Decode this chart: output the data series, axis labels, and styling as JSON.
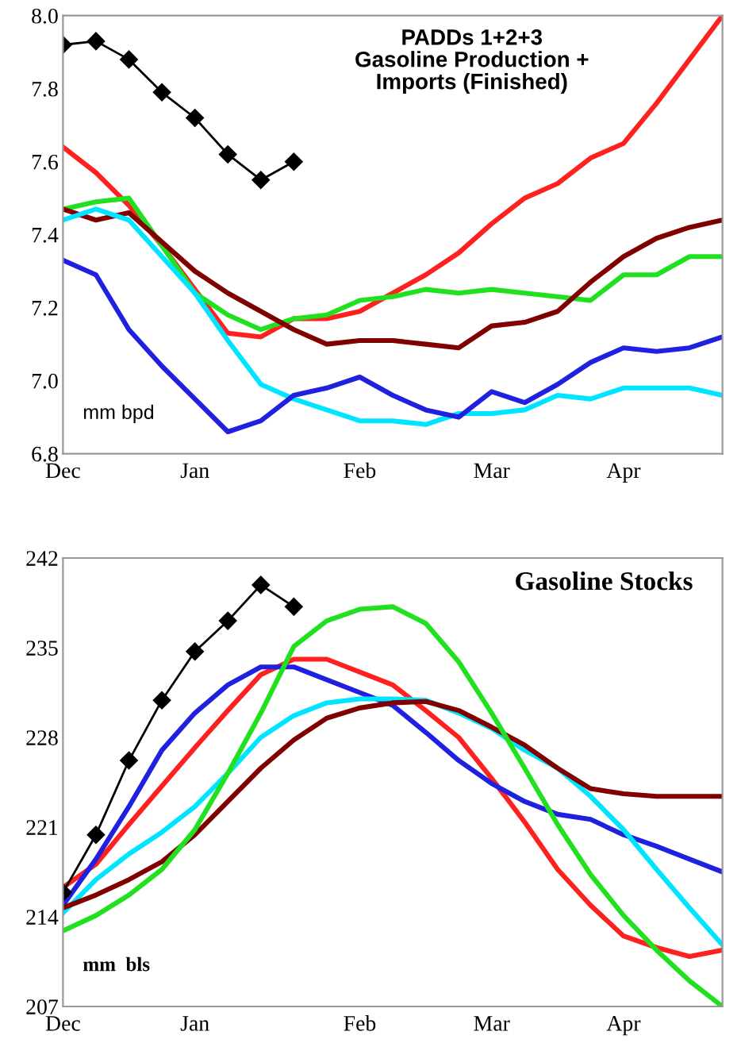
{
  "chart_data": [
    {
      "type": "line",
      "title": "PADDs 1+2+3\nGasoline Production +\nImports (Finished)",
      "annotations": [
        "mm bpd"
      ],
      "categories": [
        "Dec",
        null,
        null,
        null,
        "Jan",
        null,
        null,
        null,
        null,
        "Feb",
        null,
        null,
        null,
        "Mar",
        null,
        null,
        null,
        "Apr",
        null,
        null,
        null
      ],
      "ylim": [
        6.8,
        8.0
      ],
      "yticks": [
        {
          "value": 6.8,
          "label": "6.8"
        },
        {
          "value": 7.0,
          "label": "7.0"
        },
        {
          "value": 7.2,
          "label": "7.2"
        },
        {
          "value": 7.4,
          "label": "7.4"
        },
        {
          "value": 7.6,
          "label": "7.6"
        },
        {
          "value": 7.8,
          "label": "7.8"
        },
        {
          "value": 8.0,
          "label": "8.0"
        }
      ],
      "series": [
        {
          "color": "#ff2020",
          "values": [
            7.64,
            7.57,
            7.48,
            7.37,
            7.25,
            7.13,
            7.12,
            7.17,
            7.17,
            7.19,
            7.24,
            7.29,
            7.35,
            7.43,
            7.5,
            7.54,
            7.61,
            7.65,
            7.76,
            7.88,
            8.0
          ]
        },
        {
          "color": "#20e020",
          "values": [
            7.47,
            7.49,
            7.5,
            7.37,
            7.24,
            7.18,
            7.14,
            7.17,
            7.18,
            7.22,
            7.23,
            7.25,
            7.24,
            7.25,
            7.24,
            7.23,
            7.22,
            7.29,
            7.29,
            7.34,
            7.34
          ]
        },
        {
          "color": "#800000",
          "values": [
            7.47,
            7.44,
            7.46,
            7.38,
            7.3,
            7.24,
            7.19,
            7.14,
            7.1,
            7.11,
            7.11,
            7.1,
            7.09,
            7.15,
            7.16,
            7.19,
            7.27,
            7.34,
            7.39,
            7.42,
            7.44
          ]
        },
        {
          "color": "#00e5ff",
          "values": [
            7.44,
            7.47,
            7.44,
            7.34,
            7.24,
            7.11,
            6.99,
            6.95,
            6.92,
            6.89,
            6.89,
            6.88,
            6.91,
            6.91,
            6.92,
            6.96,
            6.95,
            6.98,
            6.98,
            6.98,
            6.96
          ]
        },
        {
          "color": "#2020e0",
          "values": [
            7.33,
            7.29,
            7.14,
            7.04,
            6.95,
            6.86,
            6.89,
            6.96,
            6.98,
            7.01,
            6.96,
            6.92,
            6.9,
            6.97,
            6.94,
            6.99,
            7.05,
            7.09,
            7.08,
            7.09,
            7.12
          ]
        },
        {
          "color": "#000000",
          "marker": "diamond",
          "values": [
            7.92,
            7.93,
            7.88,
            7.79,
            7.72,
            7.62,
            7.55,
            7.6,
            null,
            null,
            null,
            null,
            null,
            null,
            null,
            null,
            null,
            null,
            null,
            null,
            null
          ]
        }
      ]
    },
    {
      "type": "line",
      "title": "Gasoline Stocks",
      "annotations": [
        "mm  bls"
      ],
      "categories": [
        "Dec",
        null,
        null,
        null,
        "Jan",
        null,
        null,
        null,
        null,
        "Feb",
        null,
        null,
        null,
        "Mar",
        null,
        null,
        null,
        "Apr",
        null,
        null,
        null
      ],
      "ylim": [
        207,
        242
      ],
      "yticks": [
        207,
        214,
        221,
        228,
        235,
        242
      ],
      "series": [
        {
          "color": "#ff2020",
          "values": [
            216.3,
            218.1,
            221.2,
            224.2,
            227.2,
            230.1,
            232.9,
            234.1,
            234.1,
            233.1,
            232.1,
            230.1,
            228.0,
            224.8,
            221.4,
            217.7,
            214.9,
            212.5,
            211.6,
            210.9,
            211.4
          ]
        },
        {
          "color": "#2020e0",
          "values": [
            214.9,
            218.5,
            222.6,
            227.0,
            229.9,
            232.1,
            233.5,
            233.5,
            232.5,
            231.5,
            230.5,
            228.4,
            226.2,
            224.4,
            223.0,
            222.0,
            221.6,
            220.4,
            219.5,
            218.5,
            217.5
          ]
        },
        {
          "color": "#00e5ff",
          "values": [
            214.3,
            216.9,
            218.9,
            220.6,
            222.6,
            225.2,
            228.0,
            229.7,
            230.7,
            231.0,
            231.0,
            230.9,
            229.9,
            228.7,
            227.0,
            225.6,
            223.4,
            220.8,
            217.7,
            214.7,
            211.8
          ]
        },
        {
          "color": "#800000",
          "values": [
            214.7,
            215.7,
            216.9,
            218.3,
            220.4,
            223.0,
            225.6,
            227.8,
            229.5,
            230.3,
            230.7,
            230.8,
            230.1,
            228.8,
            227.4,
            225.6,
            224.0,
            223.6,
            223.4,
            223.4,
            223.4
          ]
        },
        {
          "color": "#20e020",
          "values": [
            212.9,
            214.1,
            215.7,
            217.7,
            220.8,
            225.2,
            229.9,
            235.1,
            237.1,
            238.0,
            238.2,
            236.9,
            233.9,
            229.9,
            225.6,
            221.2,
            217.3,
            214.1,
            211.4,
            209.0,
            207.0
          ]
        },
        {
          "color": "#000000",
          "marker": "diamond",
          "values": [
            215.9,
            220.4,
            226.2,
            230.9,
            234.7,
            237.1,
            239.9,
            238.2,
            null,
            null,
            null,
            null,
            null,
            null,
            null,
            null,
            null,
            null,
            null,
            null,
            null
          ]
        }
      ]
    }
  ]
}
